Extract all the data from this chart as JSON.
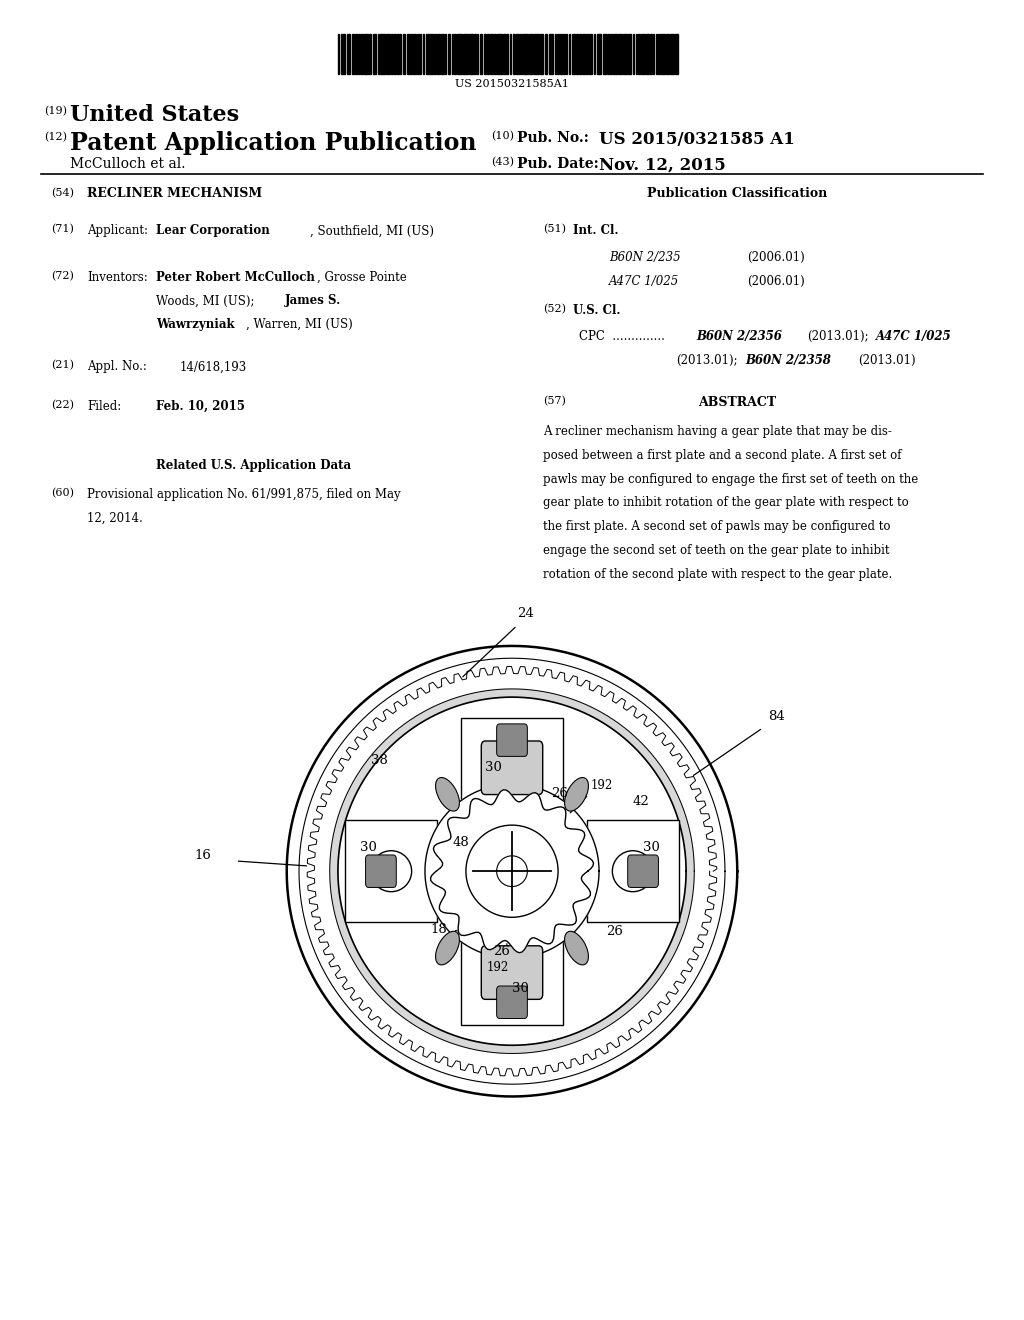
{
  "background_color": "#ffffff",
  "barcode_text": "US 20150321585A1",
  "header": {
    "line1_num": "(19)",
    "line1_text": "United States",
    "line2_num": "(12)",
    "line2_text": "Patent Application Publication",
    "line2_right_num": "(10)",
    "line2_right_label": "Pub. No.:",
    "line2_right_value": "US 2015/0321585 A1",
    "line3_left": "McCulloch et al.",
    "line3_right_num": "(43)",
    "line3_right_label": "Pub. Date:",
    "line3_right_value": "Nov. 12, 2015"
  },
  "left_col": {
    "title_num": "(54)",
    "title_text": "RECLINER MECHANISM",
    "applicant_num": "(71)",
    "applicant_label": "Applicant:",
    "applicant_bold": "Lear Corporation",
    "applicant_rest": ", Southfield, MI (US)",
    "inventors_num": "(72)",
    "inventors_label": "Inventors:",
    "inventor1_bold": "Peter Robert McCulloch",
    "appl_num": "(21)",
    "appl_label": "Appl. No.:",
    "appl_value": "14/618,193",
    "filed_num": "(22)",
    "filed_label": "Filed:",
    "filed_value": "Feb. 10, 2015",
    "related_header": "Related U.S. Application Data",
    "related_num": "(60)"
  },
  "right_col": {
    "pub_class_header": "Publication Classification",
    "int_cl_num": "(51)",
    "int_cl_label": "Int. Cl.",
    "int_cl_1_code": "B60N 2/235",
    "int_cl_1_date": "(2006.01)",
    "int_cl_2_code": "A47C 1/025",
    "int_cl_2_date": "(2006.01)",
    "us_cl_num": "(52)",
    "us_cl_label": "U.S. Cl.",
    "abstract_num": "(57)",
    "abstract_header": "ABSTRACT",
    "abstract_lines": [
      "A recliner mechanism having a gear plate that may be dis-",
      "posed between a first plate and a second plate. A first set of",
      "pawls may be configured to engage the first set of teeth on the",
      "gear plate to inhibit rotation of the gear plate with respect to",
      "the first plate. A second set of pawls may be configured to",
      "engage the second set of teeth on the gear plate to inhibit",
      "rotation of the second plate with respect to the gear plate."
    ]
  }
}
